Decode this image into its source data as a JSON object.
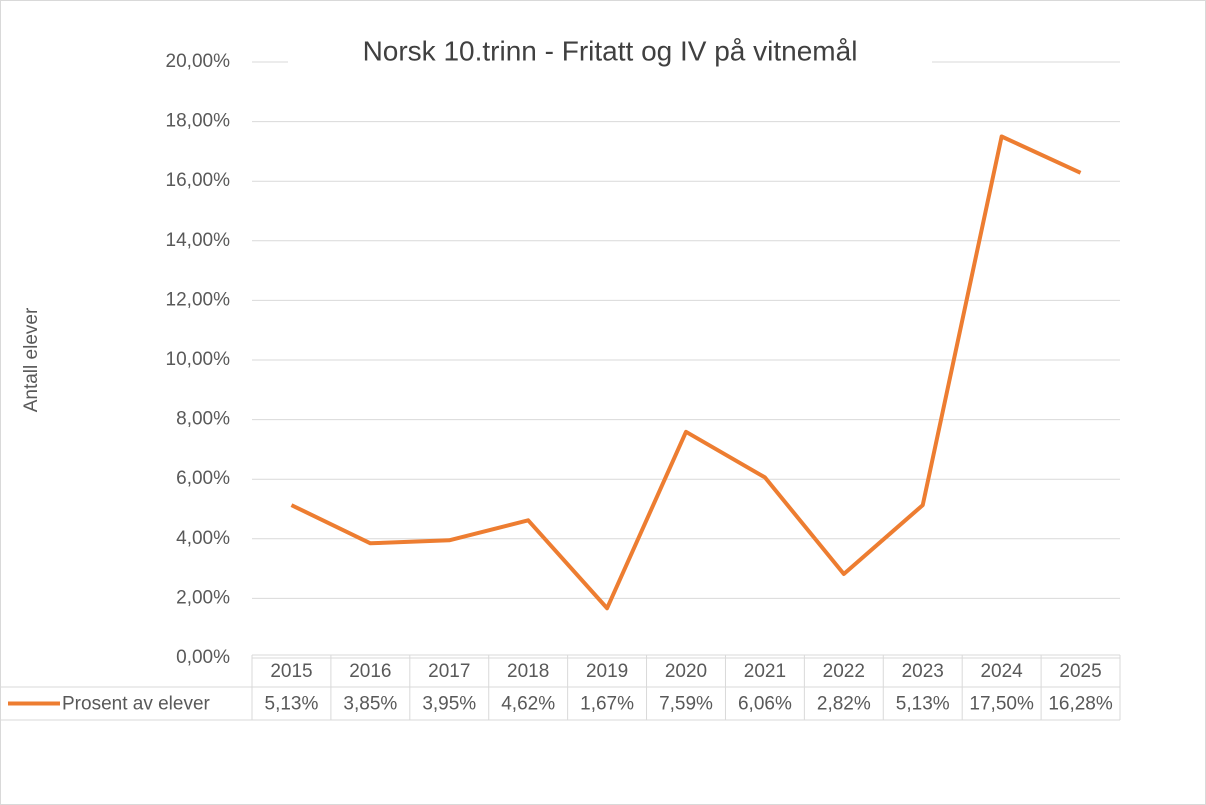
{
  "chart_data": {
    "type": "line",
    "title": "Norsk 10.trinn - Fritatt og IV på vitnemål",
    "y_label": "Antall elever",
    "categories": [
      "2015",
      "2016",
      "2017",
      "2018",
      "2019",
      "2020",
      "2021",
      "2022",
      "2023",
      "2024",
      "2025"
    ],
    "series": [
      {
        "name": "Prosent av elever",
        "color": "#ed7d31",
        "values": [
          5.13,
          3.85,
          3.95,
          4.62,
          1.67,
          7.59,
          6.06,
          2.82,
          5.13,
          17.5,
          16.28
        ],
        "value_labels": [
          "5,13%",
          "3,85%",
          "3,95%",
          "4,62%",
          "1,67%",
          "7,59%",
          "6,06%",
          "2,82%",
          "5,13%",
          "17,50%",
          "16,28%"
        ]
      }
    ],
    "ylim": [
      0,
      20
    ],
    "yticks": [
      {
        "value": 0,
        "label": "0,00%"
      },
      {
        "value": 2,
        "label": "2,00%"
      },
      {
        "value": 4,
        "label": "4,00%"
      },
      {
        "value": 6,
        "label": "6,00%"
      },
      {
        "value": 8,
        "label": "8,00%"
      },
      {
        "value": 10,
        "label": "10,00%"
      },
      {
        "value": 12,
        "label": "12,00%"
      },
      {
        "value": 14,
        "label": "14,00%"
      },
      {
        "value": 16,
        "label": "16,00%"
      },
      {
        "value": 18,
        "label": "18,00%"
      },
      {
        "value": 20,
        "label": "20,00%"
      }
    ],
    "grid": true
  }
}
